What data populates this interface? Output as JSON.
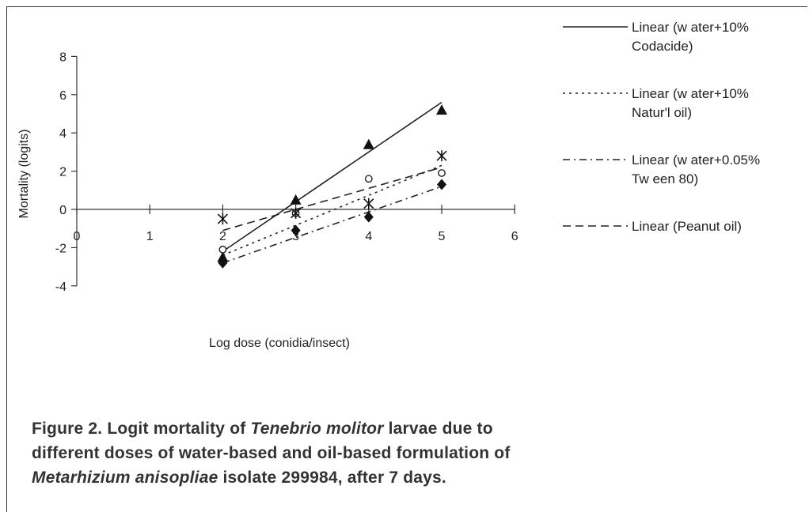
{
  "chart_data": {
    "type": "scatter",
    "xlabel": "Log dose (conidia/insect)",
    "ylabel": "Mortality (logits)",
    "xlim": [
      0,
      6
    ],
    "ylim": [
      -4,
      8
    ],
    "xticks": [
      0,
      1,
      2,
      3,
      4,
      5,
      6
    ],
    "yticks": [
      -4,
      -2,
      0,
      2,
      4,
      6,
      8
    ],
    "grid": false,
    "legend_position": "right",
    "series": [
      {
        "marker": "triangle",
        "x": [
          2,
          3,
          4,
          5
        ],
        "y": [
          -2.5,
          0.5,
          3.4,
          5.2
        ]
      },
      {
        "marker": "circle",
        "x": [
          2,
          3,
          4,
          5
        ],
        "y": [
          -2.1,
          -0.2,
          1.6,
          1.9
        ]
      },
      {
        "marker": "star",
        "x": [
          2,
          3,
          4,
          5
        ],
        "y": [
          -0.5,
          -0.2,
          0.3,
          2.8
        ]
      },
      {
        "marker": "diamond",
        "x": [
          2,
          3,
          4,
          5
        ],
        "y": [
          -2.8,
          -1.1,
          -0.4,
          1.3
        ]
      }
    ],
    "trendlines": [
      {
        "name": "Linear (w ater+10% Codacide)",
        "style": "solid",
        "x": [
          2,
          5
        ],
        "y": [
          -2.2,
          5.6
        ]
      },
      {
        "name": "Linear (w ater+10% Natur'l oil)",
        "style": "dotted",
        "x": [
          2,
          5
        ],
        "y": [
          -2.4,
          2.3
        ]
      },
      {
        "name": "Linear (w ater+0.05% Tw een 80)",
        "style": "dashdot",
        "x": [
          2,
          5
        ],
        "y": [
          -2.8,
          1.2
        ]
      },
      {
        "name": "Linear (Peanut oil)",
        "style": "dashed",
        "x": [
          2,
          5
        ],
        "y": [
          -1.1,
          2.2
        ]
      }
    ],
    "legend": [
      {
        "line1": "Linear (w ater+10%",
        "line2": "Codacide)",
        "style": "solid"
      },
      {
        "line1": "Linear (w ater+10%",
        "line2": "Natur'l oil)",
        "style": "dotted"
      },
      {
        "line1": "Linear (w ater+0.05%",
        "line2": "Tw een 80)",
        "style": "dashdot"
      },
      {
        "line1": "Linear (Peanut oil)",
        "line2": "",
        "style": "dashed"
      }
    ]
  },
  "caption": {
    "line1_prefix": "Figure 2. Logit mortality of ",
    "line1_italic": "Tenebrio molitor",
    "line1_suffix": " larvae due to",
    "line2": "different doses of water-based and oil-based formulation of",
    "line3_italic": "Metarhizium anisopliae",
    "line3_suffix": " isolate 299984, after 7 days."
  }
}
